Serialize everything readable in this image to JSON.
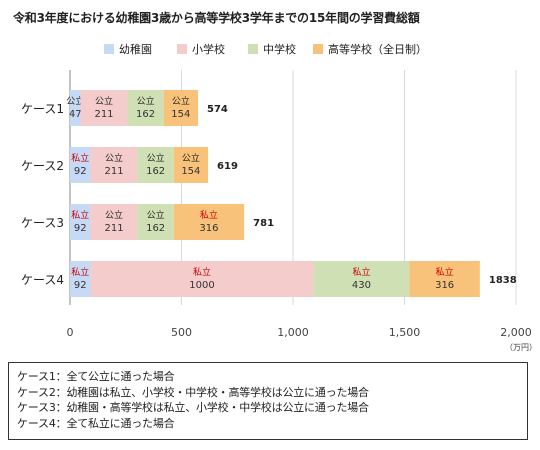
{
  "chart_data": {
    "type": "bar",
    "orientation": "horizontal",
    "stacked": true,
    "title": "令和3年度における幼稚園3歳から高等学校3学年までの15年間の学習費総額",
    "unit_label": "（万円）",
    "categories": [
      "ケース1",
      "ケース2",
      "ケース3",
      "ケース4"
    ],
    "series": [
      {
        "name": "幼稚園",
        "color": "#c6d9f5",
        "values": [
          47,
          92,
          92,
          92
        ],
        "labels": [
          "公立",
          "私立",
          "私立",
          "私立"
        ]
      },
      {
        "name": "小学校",
        "color": "#f4cccc",
        "values": [
          211,
          211,
          211,
          1000
        ],
        "labels": [
          "公立",
          "公立",
          "公立",
          "私立"
        ]
      },
      {
        "name": "中学校",
        "color": "#cfe0b4",
        "values": [
          162,
          162,
          162,
          430
        ],
        "labels": [
          "公立",
          "公立",
          "公立",
          "私立"
        ]
      },
      {
        "name": "高等学校（全日制）",
        "color": "#f9c27a",
        "values": [
          154,
          154,
          316,
          316
        ],
        "labels": [
          "公立",
          "公立",
          "私立",
          "私立"
        ]
      }
    ],
    "totals": [
      574,
      619,
      781,
      1838
    ],
    "xlim": [
      0,
      2000
    ],
    "xticks": [
      0,
      500,
      1000,
      1500,
      2000
    ],
    "xtick_labels": [
      "0",
      "500",
      "1,000",
      "1,500",
      "2,000"
    ],
    "grid": true,
    "legend_position": "top-left"
  },
  "colors": {
    "private_label": "#cc0000",
    "public_label": "#222222",
    "grid": "#d9d9d9"
  },
  "notes": [
    "ケース1：全て公立に通った場合",
    "ケース2：幼稚園は私立、小学校・中学校・高等学校は公立に通った場合",
    "ケース3：幼稚園・高等学校は私立、小学校・中学校は公立に通った場合",
    "ケース4：全て私立に通った場合"
  ]
}
